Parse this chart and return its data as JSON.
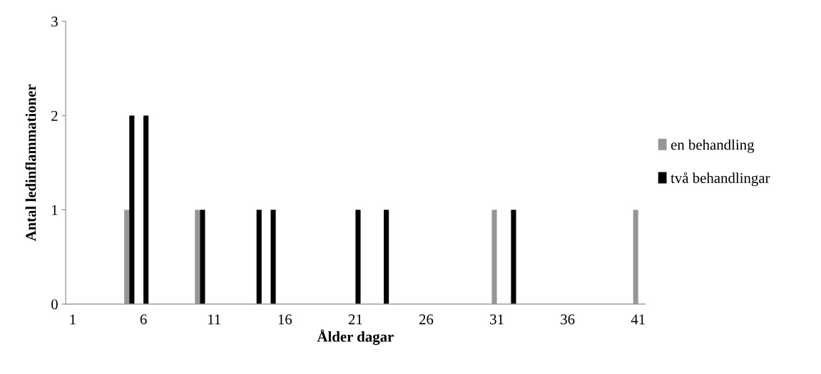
{
  "chart_data": {
    "type": "bar",
    "xlabel": "Ålder dagar",
    "ylabel": "Antal ledinflammationer",
    "categories": [
      "1",
      null,
      null,
      null,
      null,
      "6",
      null,
      null,
      null,
      null,
      "11",
      null,
      null,
      null,
      null,
      "16",
      null,
      null,
      null,
      null,
      "21",
      null,
      null,
      null,
      null,
      "26",
      null,
      null,
      null,
      null,
      "31",
      null,
      null,
      null,
      null,
      "36",
      null,
      null,
      null,
      null,
      "41"
    ],
    "series": [
      {
        "name": "en behandling",
        "color": "#969696",
        "values": [
          0,
          0,
          0,
          0,
          1,
          0,
          0,
          0,
          0,
          1,
          0,
          0,
          0,
          0,
          0,
          0,
          0,
          0,
          0,
          0,
          0,
          0,
          0,
          0,
          0,
          0,
          0,
          0,
          0,
          0,
          1,
          0,
          0,
          0,
          0,
          0,
          0,
          0,
          0,
          0,
          1
        ]
      },
      {
        "name": "två behandlingar",
        "color": "#000000",
        "values": [
          0,
          0,
          0,
          0,
          2,
          2,
          0,
          0,
          0,
          1,
          0,
          0,
          0,
          1,
          1,
          0,
          0,
          0,
          0,
          0,
          1,
          0,
          1,
          0,
          0,
          0,
          0,
          0,
          0,
          0,
          0,
          1,
          0,
          0,
          0,
          0,
          0,
          0,
          0,
          0,
          0
        ]
      }
    ],
    "ylim": [
      0,
      3
    ],
    "yticks": [
      0,
      1,
      2,
      3
    ],
    "grid": false,
    "legend": "right"
  }
}
